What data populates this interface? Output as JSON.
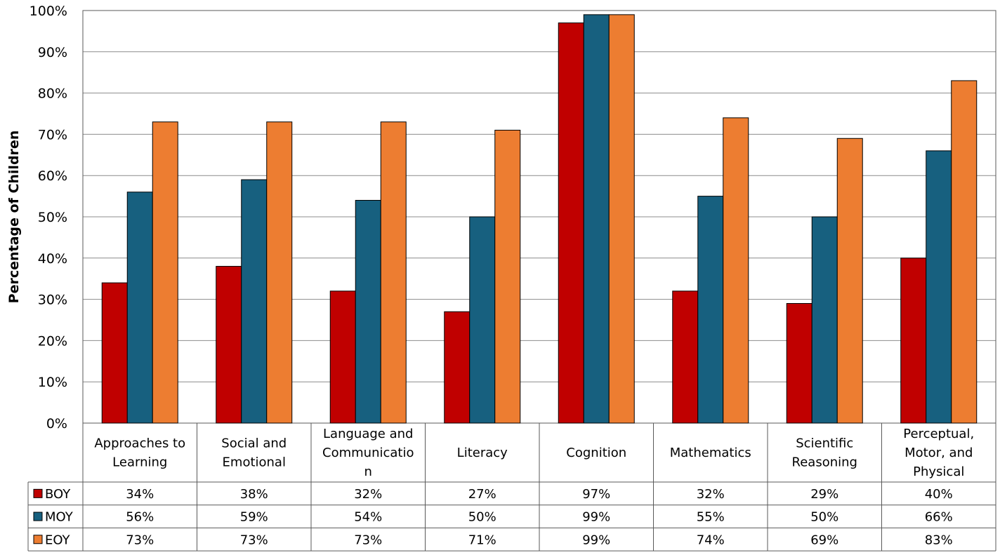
{
  "chart_data": {
    "type": "bar",
    "ylabel": "Percentage of Children",
    "ylim": [
      0,
      100
    ],
    "y_ticks": [
      "0%",
      "10%",
      "20%",
      "30%",
      "40%",
      "50%",
      "60%",
      "70%",
      "80%",
      "90%",
      "100%"
    ],
    "grid": true,
    "legend": "data-table",
    "categories": [
      [
        "Approaches to",
        "Learning"
      ],
      [
        "Social and",
        "Emotional"
      ],
      [
        "Language and",
        "Communicatio",
        "n"
      ],
      [
        "Literacy"
      ],
      [
        "Cognition"
      ],
      [
        "Mathematics"
      ],
      [
        "Scientific",
        "Reasoning"
      ],
      [
        "Perceptual,",
        "Motor, and",
        "Physical"
      ]
    ],
    "series": [
      {
        "name": "BOY",
        "color": "#C00000",
        "values": [
          34,
          38,
          32,
          27,
          97,
          32,
          29,
          40
        ],
        "labels": [
          "34%",
          "38%",
          "32%",
          "27%",
          "97%",
          "32%",
          "29%",
          "40%"
        ]
      },
      {
        "name": "MOY",
        "color": "#17607F",
        "values": [
          56,
          59,
          54,
          50,
          99,
          55,
          50,
          66
        ],
        "labels": [
          "56%",
          "59%",
          "54%",
          "50%",
          "99%",
          "55%",
          "50%",
          "66%"
        ]
      },
      {
        "name": "EOY",
        "color": "#ED7D31",
        "values": [
          73,
          73,
          73,
          71,
          99,
          74,
          69,
          83
        ],
        "labels": [
          "73%",
          "73%",
          "73%",
          "71%",
          "99%",
          "74%",
          "69%",
          "83%"
        ]
      }
    ]
  }
}
